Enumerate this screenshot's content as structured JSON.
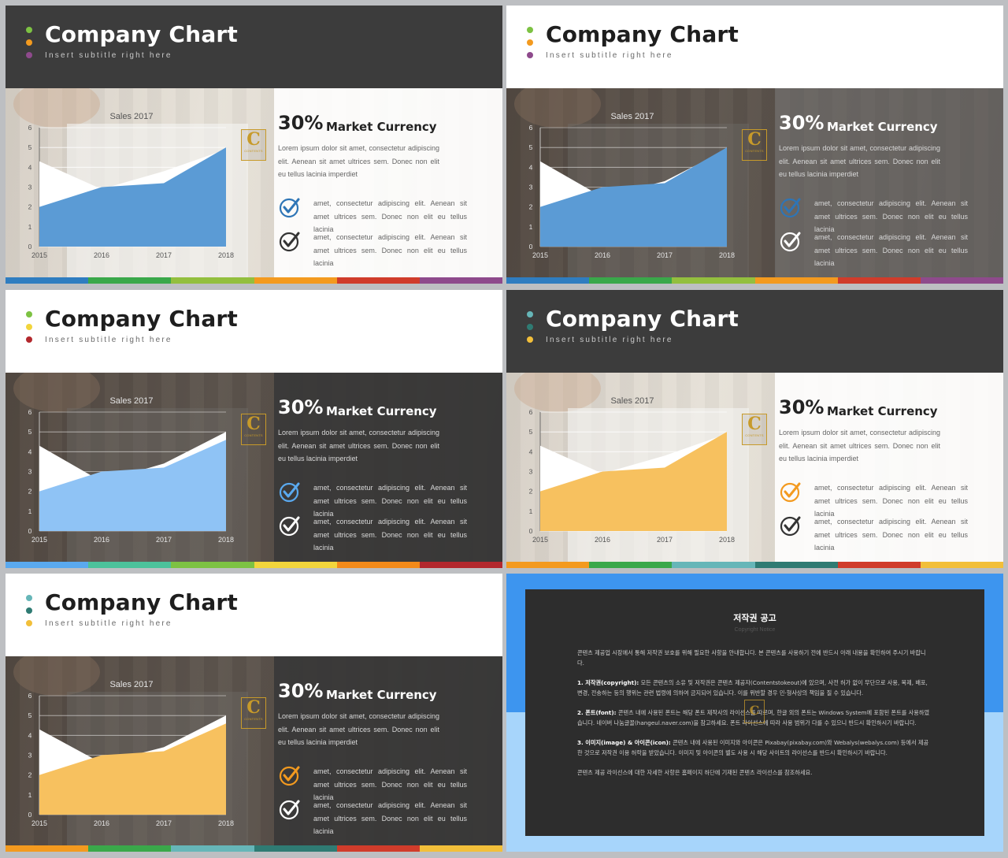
{
  "slides": [
    {
      "title": "Company Chart",
      "subtitle": "Insert subtitle right here",
      "header_theme": "dark",
      "photo_theme": "light",
      "panel_theme": "light",
      "dot_colors": [
        "#7dc243",
        "#f39a1f",
        "#8e4a8c"
      ],
      "accent": "#5b9bd5",
      "check_color": "#2e75b6",
      "strip_colors": [
        "#2f7dc0",
        "#3aa84a",
        "#93bf3e",
        "#f39a1f",
        "#d03c2b",
        "#8e4a8c"
      ],
      "chart_data": {
        "type": "area",
        "title": "Sales  2017",
        "x": [
          "2015",
          "2016",
          "2017",
          "2018"
        ],
        "yticks": [
          "0",
          "1",
          "2",
          "3",
          "4",
          "5",
          "6"
        ],
        "ylim": [
          0,
          6
        ],
        "series": [
          {
            "color": "#ffffff",
            "values": [
              4.3,
              2.9,
              3.8,
              4.9
            ]
          },
          {
            "color": "#5b9bd5",
            "values": [
              2.0,
              3.0,
              3.2,
              5.0
            ]
          }
        ]
      }
    },
    {
      "title": "Company Chart",
      "subtitle": "Insert subtitle right here",
      "header_theme": "light",
      "photo_theme": "dark",
      "panel_theme": "mid",
      "dot_colors": [
        "#7dc243",
        "#f39a1f",
        "#8e4a8c"
      ],
      "accent": "#5b9bd5",
      "check_color": "#2e75b6",
      "strip_colors": [
        "#2f7dc0",
        "#3aa84a",
        "#93bf3e",
        "#f39a1f",
        "#d03c2b",
        "#8e4a8c"
      ],
      "chart_data": {
        "type": "area",
        "title": "Sales  2017",
        "x": [
          "2015",
          "2016",
          "2017",
          "2018"
        ],
        "yticks": [
          "0",
          "1",
          "2",
          "3",
          "4",
          "5",
          "6"
        ],
        "ylim": [
          0,
          6
        ],
        "series": [
          {
            "color": "#ffffff",
            "values": [
              4.3,
              2.5,
              3.3,
              4.9
            ]
          },
          {
            "color": "#5b9bd5",
            "values": [
              2.0,
              3.0,
              3.2,
              5.0
            ]
          }
        ]
      }
    },
    {
      "title": "Company Chart",
      "subtitle": "Insert subtitle right here",
      "header_theme": "light",
      "photo_theme": "dark",
      "panel_theme": "dark",
      "dot_colors": [
        "#7dc243",
        "#f2d53c",
        "#b3282d"
      ],
      "accent": "#8fc3f5",
      "check_color": "#5aa9ef",
      "strip_colors": [
        "#5aa9ef",
        "#4cc29b",
        "#7dc243",
        "#f2d53c",
        "#f38a1a",
        "#b3282d"
      ],
      "chart_data": {
        "type": "area",
        "title": "Sales  2017",
        "x": [
          "2015",
          "2016",
          "2017",
          "2018"
        ],
        "yticks": [
          "0",
          "1",
          "2",
          "3",
          "4",
          "5",
          "6"
        ],
        "ylim": [
          0,
          6
        ],
        "series": [
          {
            "color": "#ffffff",
            "values": [
              4.3,
              2.5,
              3.4,
              5.0
            ]
          },
          {
            "color": "#8fc3f5",
            "values": [
              2.0,
              3.0,
              3.2,
              4.6
            ]
          }
        ]
      }
    },
    {
      "title": "Company Chart",
      "subtitle": "Insert subtitle right here",
      "header_theme": "dark",
      "photo_theme": "light",
      "panel_theme": "light",
      "dot_colors": [
        "#66b6b8",
        "#2f7b73",
        "#f2bf3a"
      ],
      "accent": "#f7c15f",
      "check_color": "#f39a1f",
      "strip_colors": [
        "#f39a1f",
        "#3aa84a",
        "#66b6b8",
        "#2f7b73",
        "#d03c2b",
        "#f2bf3a"
      ],
      "chart_data": {
        "type": "area",
        "title": "Sales  2017",
        "x": [
          "2015",
          "2016",
          "2017",
          "2018"
        ],
        "yticks": [
          "0",
          "1",
          "2",
          "3",
          "4",
          "5",
          "6"
        ],
        "ylim": [
          0,
          6
        ],
        "series": [
          {
            "color": "#ffffff",
            "values": [
              4.3,
              2.9,
              3.8,
              4.9
            ]
          },
          {
            "color": "#f7c15f",
            "values": [
              2.0,
              3.0,
              3.2,
              5.0
            ]
          }
        ]
      }
    },
    {
      "title": "Company Chart",
      "subtitle": "Insert subtitle right here",
      "header_theme": "light",
      "photo_theme": "dark",
      "panel_theme": "dark",
      "dot_colors": [
        "#66b6b8",
        "#2f7b73",
        "#f2bf3a"
      ],
      "accent": "#f7c15f",
      "check_color": "#f39a1f",
      "strip_colors": [
        "#f39a1f",
        "#3aa84a",
        "#66b6b8",
        "#2f7b73",
        "#d03c2b",
        "#f2bf3a"
      ],
      "chart_data": {
        "type": "area",
        "title": "Sales  2017",
        "x": [
          "2015",
          "2016",
          "2017",
          "2018"
        ],
        "yticks": [
          "0",
          "1",
          "2",
          "3",
          "4",
          "5",
          "6"
        ],
        "ylim": [
          0,
          6
        ],
        "series": [
          {
            "color": "#ffffff",
            "values": [
              4.3,
              2.6,
              3.4,
              5.0
            ]
          },
          {
            "color": "#f7c15f",
            "values": [
              2.0,
              3.0,
              3.2,
              4.6
            ]
          }
        ]
      }
    }
  ],
  "panel": {
    "percent": "30%",
    "heading": "Market Currency",
    "lorem": "Lorem ipsum dolor sit amet, consectetur adipiscing elit. Aenean sit amet ultrices sem. Donec non elit eu tellus lacinia imperdiet",
    "items": [
      "amet, consectetur adipiscing elit. Aenean sit amet ultrices sem. Donec non elit eu tellus lacinia",
      "amet, consectetur adipiscing elit. Aenean sit amet ultrices sem. Donec non elit eu tellus lacinia"
    ],
    "badge_letter": "C",
    "badge_text": "CONTENTS"
  },
  "copyright": {
    "title": "저작권 공고",
    "subtitle": "Copyright Notice",
    "intro": "콘텐츠 제공업 시장에서 통해 저작권 보호를 위해 필요한 사항을 안내합니다. 본 콘텐츠를 사용하기 전에 반드시 아래 내용을 확인하여 주시기 바랍니다.",
    "sections": [
      {
        "label": "1. 저작권(copyright):",
        "text": "모든 콘텐츠의 소유 및 저작권은 콘텐츠 제공자(Contentstokeout)에 있으며, 사전 허가 없이 무단으로 사용, 복제, 배포, 변경, 전송하는 등의 행위는 관련 법령에 의하여 금지되어 있습니다. 이를 위반할 경우 민·형사상의 책임을 질 수 있습니다."
      },
      {
        "label": "2. 폰트(font):",
        "text": "콘텐츠 내에 사용된 폰트는 해당 폰트 제작사의 라이선스를 따르며, 한글 외의 폰트는 Windows System에 포함된 폰트를 사용하였습니다. 네이버 나눔글꼴(hangeul.naver.com)을 참고하세요. 폰트 라이선스에 따라 사용 범위가 다를 수 있으니 반드시 확인하시기 바랍니다."
      },
      {
        "label": "3. 이미지(image) & 아이콘(icon):",
        "text": "콘텐츠 내에 사용된 이미지와 아이콘은 Pixabay(pixabay.com)와 Webalys(webalys.com) 등에서 제공한 것으로 저작권 이용 허락을 받았습니다. 이미지 및 아이콘의 별도 사용 시 해당 사이트의 라이선스를 반드시 확인하시기 바랍니다."
      }
    ],
    "outro": "콘텐츠 제공 라이선스에 대한 자세한 사항은 홈페이지 하단에 기재된 콘텐츠 라이선스를 참조하세요."
  }
}
